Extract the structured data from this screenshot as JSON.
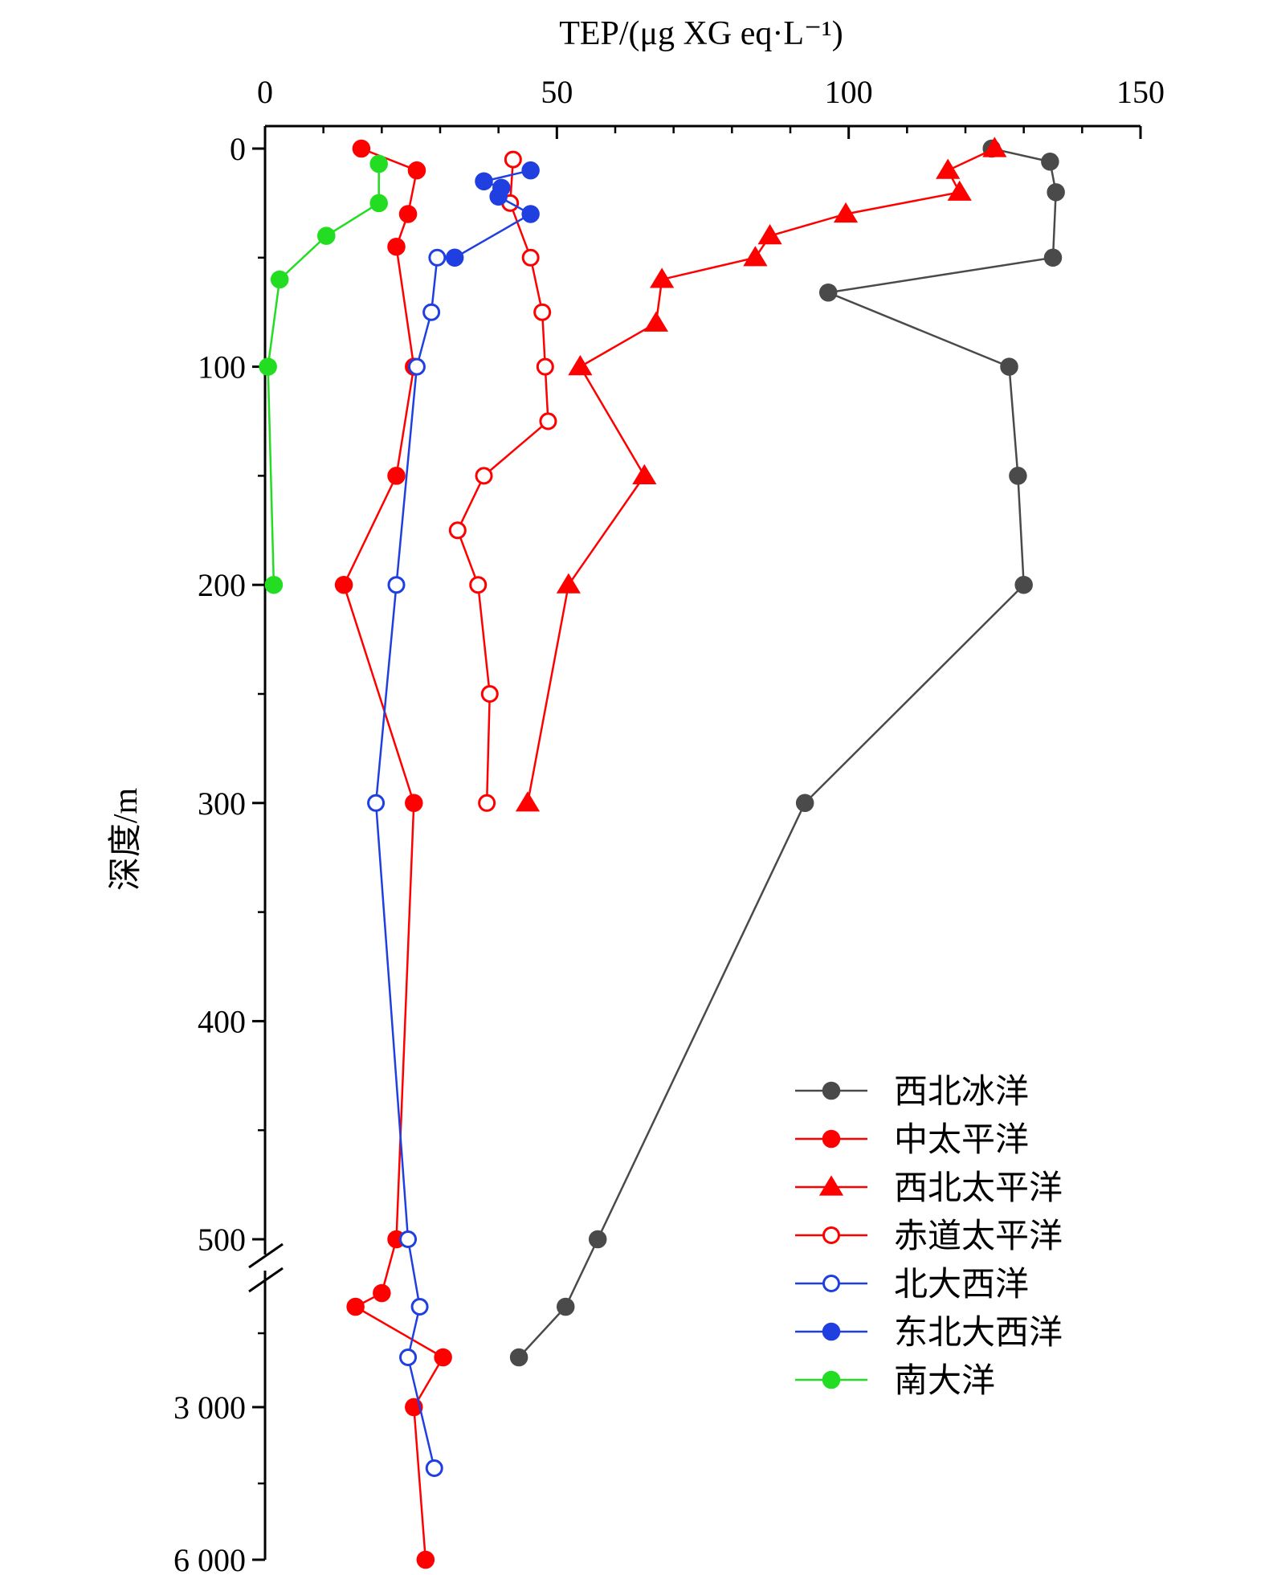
{
  "chart_data": {
    "type": "line",
    "xlabel": "TEP/(μg XG eq·L⁻¹)",
    "ylabel": "深度/m",
    "x_axis_position": "top",
    "xlim": [
      0,
      150
    ],
    "x_ticks": [
      0,
      50,
      100,
      150
    ],
    "x_tick_labels": [
      "0",
      "50",
      "100",
      "150"
    ],
    "y_axis_inverted": true,
    "y_axis_broken_at": 500,
    "y_upper_range": [
      0,
      500
    ],
    "y_lower_range": [
      500,
      6000
    ],
    "y_tick_labels": [
      "0",
      "100",
      "200",
      "300",
      "400",
      "500",
      "3 000",
      "6 000"
    ],
    "grid": false,
    "legend_position": "bottom-right",
    "series": [
      {
        "name": "西北冰洋",
        "color": "#4a4a4a",
        "marker": "circle-filled",
        "points": [
          {
            "depth": 0,
            "tep": 124.5
          },
          {
            "depth": 6,
            "tep": 134.5
          },
          {
            "depth": 20,
            "tep": 135.5
          },
          {
            "depth": 50,
            "tep": 135.0
          },
          {
            "depth": 66,
            "tep": 96.5
          },
          {
            "depth": 100,
            "tep": 127.5
          },
          {
            "depth": 150,
            "tep": 129.0
          },
          {
            "depth": 200,
            "tep": 130.0
          },
          {
            "depth": 300,
            "tep": 92.5
          },
          {
            "depth": 500,
            "tep": 57.0
          },
          {
            "depth": 1000,
            "tep": 51.5
          },
          {
            "depth": 2000,
            "tep": 43.5
          }
        ]
      },
      {
        "name": "中太平洋",
        "color": "#ff0000",
        "marker": "circle-filled",
        "points": [
          {
            "depth": 0,
            "tep": 16.5
          },
          {
            "depth": 10,
            "tep": 26.0
          },
          {
            "depth": 30,
            "tep": 24.5
          },
          {
            "depth": 45,
            "tep": 22.5
          },
          {
            "depth": 100,
            "tep": 25.5
          },
          {
            "depth": 150,
            "tep": 22.5
          },
          {
            "depth": 200,
            "tep": 13.5
          },
          {
            "depth": 300,
            "tep": 25.5
          },
          {
            "depth": 500,
            "tep": 22.5
          },
          {
            "depth": 750,
            "tep": 20.0
          },
          {
            "depth": 1000,
            "tep": 15.5
          },
          {
            "depth": 2000,
            "tep": 30.5
          },
          {
            "depth": 3000,
            "tep": 25.5
          },
          {
            "depth": 5000,
            "tep": 27.5
          }
        ]
      },
      {
        "name": "西北太平洋",
        "color": "#ff0000",
        "marker": "triangle-filled",
        "points": [
          {
            "depth": 0,
            "tep": 125.0
          },
          {
            "depth": 10,
            "tep": 117.0
          },
          {
            "depth": 20,
            "tep": 119.0
          },
          {
            "depth": 30,
            "tep": 99.5
          },
          {
            "depth": 40,
            "tep": 86.5
          },
          {
            "depth": 50,
            "tep": 84.0
          },
          {
            "depth": 60,
            "tep": 68.0
          },
          {
            "depth": 80,
            "tep": 67.0
          },
          {
            "depth": 100,
            "tep": 54.0
          },
          {
            "depth": 150,
            "tep": 65.0
          },
          {
            "depth": 200,
            "tep": 52.0
          },
          {
            "depth": 300,
            "tep": 45.0
          }
        ]
      },
      {
        "name": "赤道太平洋",
        "color": "#ff0000",
        "marker": "circle-open",
        "points": [
          {
            "depth": 5,
            "tep": 42.5
          },
          {
            "depth": 25,
            "tep": 42.0
          },
          {
            "depth": 50,
            "tep": 45.5
          },
          {
            "depth": 75,
            "tep": 47.5
          },
          {
            "depth": 100,
            "tep": 48.0
          },
          {
            "depth": 125,
            "tep": 48.5
          },
          {
            "depth": 150,
            "tep": 37.5
          },
          {
            "depth": 175,
            "tep": 33.0
          },
          {
            "depth": 200,
            "tep": 36.5
          },
          {
            "depth": 250,
            "tep": 38.5
          },
          {
            "depth": 300,
            "tep": 38.0
          }
        ]
      },
      {
        "name": "北大西洋",
        "color": "#1f3fe0",
        "marker": "circle-open",
        "points": [
          {
            "depth": 50,
            "tep": 29.5
          },
          {
            "depth": 75,
            "tep": 28.5
          },
          {
            "depth": 100,
            "tep": 26.0
          },
          {
            "depth": 200,
            "tep": 22.5
          },
          {
            "depth": 300,
            "tep": 19.0
          },
          {
            "depth": 500,
            "tep": 24.5
          },
          {
            "depth": 1000,
            "tep": 26.5
          },
          {
            "depth": 2000,
            "tep": 24.5
          },
          {
            "depth": 4000,
            "tep": 29.0
          }
        ]
      },
      {
        "name": "东北大西洋",
        "color": "#1f3fe0",
        "marker": "circle-filled",
        "points": [
          {
            "depth": 10,
            "tep": 45.5
          },
          {
            "depth": 15,
            "tep": 37.5
          },
          {
            "depth": 18,
            "tep": 40.5
          },
          {
            "depth": 22,
            "tep": 40.0
          },
          {
            "depth": 30,
            "tep": 45.5
          },
          {
            "depth": 50,
            "tep": 32.5
          }
        ]
      },
      {
        "name": "南大洋",
        "color": "#22dd22",
        "marker": "circle-filled",
        "points": [
          {
            "depth": 7,
            "tep": 19.5
          },
          {
            "depth": 25,
            "tep": 19.5
          },
          {
            "depth": 40,
            "tep": 10.5
          },
          {
            "depth": 60,
            "tep": 2.5
          },
          {
            "depth": 100,
            "tep": 0.5
          },
          {
            "depth": 200,
            "tep": 1.5
          }
        ]
      }
    ]
  }
}
